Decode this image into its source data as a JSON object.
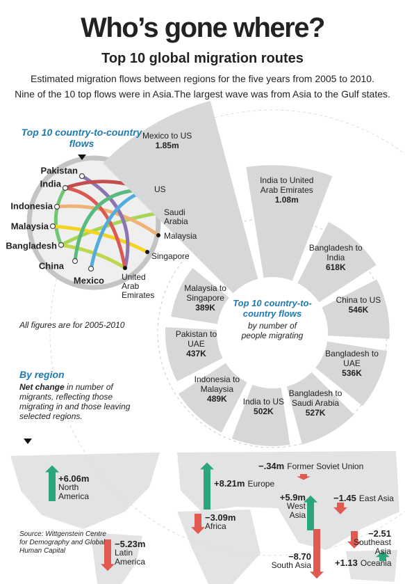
{
  "header": {
    "title": "Who’s gone where?",
    "subtitle": "Top 10 global migration routes",
    "description": [
      "Estimated migration flows between regions for the five years from 2005 to 2010.",
      "Nine of the 10 top flows were in Asia.The largest wave was from Asia to the Gulf states."
    ]
  },
  "chord": {
    "title": "Top 10 country-to-country flows",
    "origins": [
      "Pakistan",
      "India",
      "Indonesia",
      "Malaysia",
      "Bangladesh",
      "China",
      "Mexico"
    ],
    "destinations": [
      "US",
      "Saudi Arabia",
      "Malaysia",
      "Singapore",
      "United Arab Emirates"
    ]
  },
  "note": "All figures are for 2005-2010",
  "source": "Source: Wittgenstein Centre for Demography and Global Human Capital",
  "chart_data": [
    {
      "type": "radial-bar",
      "title": "Top 10 country-to-country flows",
      "subtitle": "by number of people migrating",
      "categories": [
        "Mexico to US",
        "India to United Arab Emirates",
        "Bangladesh to India",
        "China to US",
        "Bangladesh to UAE",
        "Bangladesh to Saudi Arabia",
        "India to US",
        "Indonesia to Malaysia",
        "Pakistan to UAE",
        "Malaysia to Singapore"
      ],
      "values": [
        1850000,
        1080000,
        618000,
        546000,
        536000,
        527000,
        502000,
        489000,
        437000,
        389000
      ],
      "value_labels": [
        "1.85m",
        "1.08m",
        "618K",
        "546K",
        "536K",
        "527K",
        "502K",
        "489K",
        "437K",
        "389K"
      ],
      "color": "#d5d7d9"
    },
    {
      "type": "arrow",
      "title": "By region",
      "subtitle_bold": "Net change",
      "subtitle": "in number of migrants, reflecting those migrating in and those leaving selected regions.",
      "categories": [
        "North America",
        "Europe",
        "Former Soviet Union",
        "West Asia",
        "East Asia",
        "Africa",
        "Southeast Asia",
        "South Asia",
        "Latin America",
        "Oceania"
      ],
      "values": [
        6.06,
        8.21,
        -0.34,
        5.9,
        -1.45,
        -3.09,
        -2.51,
        -8.7,
        -5.23,
        1.13
      ],
      "value_labels": [
        "+6.06m",
        "+8.21m",
        "−.34m",
        "+5.9m",
        "−1.45",
        "−3.09m",
        "−2.51",
        "−8.70",
        "−5.23m",
        "+1.13"
      ],
      "positive_color": "#2aa67a",
      "negative_color": "#e05a50"
    }
  ]
}
